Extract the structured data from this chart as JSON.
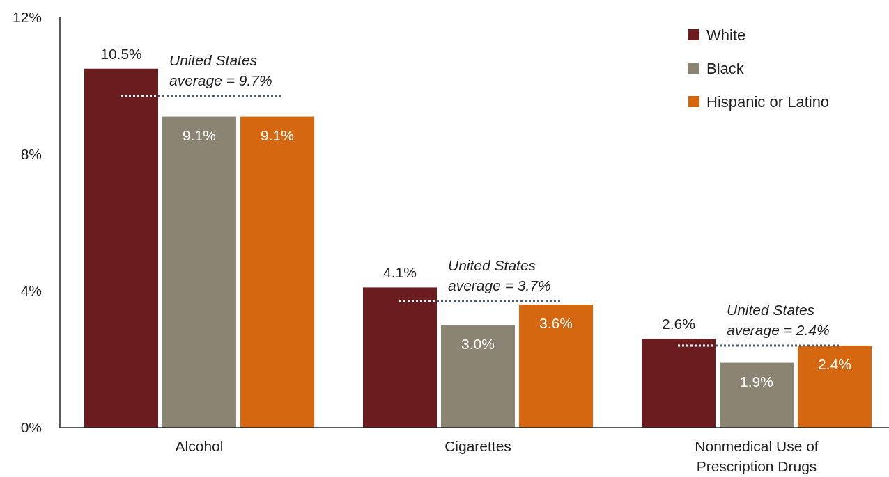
{
  "chart_data": {
    "type": "bar",
    "categories": [
      "Alcohol",
      "Cigarettes",
      "Nonmedical Use of Prescription Drugs"
    ],
    "series": [
      {
        "name": "White",
        "color": "#6a1c1e",
        "values": [
          10.5,
          4.1,
          2.6
        ],
        "value_labels": [
          "10.5%",
          "4.1%",
          "2.6%"
        ]
      },
      {
        "name": "Black",
        "color": "#8c8473",
        "values": [
          9.1,
          3.0,
          1.9
        ],
        "value_labels": [
          "9.1%",
          "3.0%",
          "1.9%"
        ]
      },
      {
        "name": "Hispanic or Latino",
        "color": "#d4670f",
        "values": [
          9.1,
          3.6,
          2.4
        ],
        "value_labels": [
          "9.1%",
          "3.6%",
          "2.4%"
        ]
      }
    ],
    "ylim": [
      0,
      12
    ],
    "yticks": [
      {
        "value": 0,
        "label": "0%"
      },
      {
        "value": 4,
        "label": "4%"
      },
      {
        "value": 8,
        "label": "8%"
      },
      {
        "value": 12,
        "label": "12%"
      }
    ],
    "legend": "top right",
    "ref_lines": [
      {
        "axis": "y",
        "value": 9.7,
        "label": "United States\naverage = 9.7%",
        "color": "#4a5d78",
        "line_style": "dotted"
      },
      {
        "axis": "y",
        "value": 3.7,
        "label": "United States\naverage = 3.7%",
        "color": "#4a5d78",
        "line_style": "dotted"
      },
      {
        "axis": "y",
        "value": 2.4,
        "label": "United States\naverage = 2.4%",
        "color": "#4a5d78",
        "line_style": "dotted"
      }
    ]
  }
}
